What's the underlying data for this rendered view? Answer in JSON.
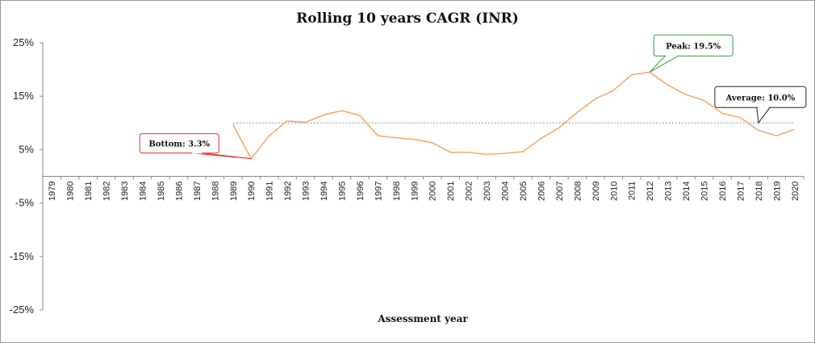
{
  "chart_data": {
    "type": "line",
    "title": "Rolling 10 years CAGR (INR)",
    "xlabel": "Assessment year",
    "ylabel": "",
    "ylim": [
      -25,
      25
    ],
    "yticks": [
      "25%",
      "15%",
      "5%",
      "-5%",
      "-15%",
      "-25%"
    ],
    "ytick_values": [
      25,
      15,
      5,
      -5,
      -15,
      -25
    ],
    "x": [
      "1979",
      "1980",
      "1981",
      "1982",
      "1983",
      "1984",
      "1985",
      "1986",
      "1987",
      "1988",
      "1989",
      "1990",
      "1991",
      "1992",
      "1993",
      "1994",
      "1995",
      "1996",
      "1997",
      "1998",
      "1999",
      "2000",
      "2001",
      "2002",
      "2003",
      "2004",
      "2005",
      "2006",
      "2007",
      "2008",
      "2009",
      "2010",
      "2011",
      "2012",
      "2013",
      "2014",
      "2015",
      "2016",
      "2017",
      "2018",
      "2019",
      "2020"
    ],
    "series": [
      {
        "color": "#f4a460",
        "values": [
          null,
          null,
          null,
          null,
          null,
          null,
          null,
          null,
          null,
          null,
          9.7,
          3.3,
          7.6,
          10.4,
          10.1,
          11.5,
          12.3,
          11.4,
          7.6,
          7.2,
          6.9,
          6.3,
          4.5,
          4.5,
          4.1,
          4.3,
          4.6,
          7.1,
          9.1,
          12.0,
          14.5,
          16.1,
          19.0,
          19.5,
          17.1,
          15.3,
          14.2,
          11.8,
          11.0,
          8.6,
          7.6,
          8.8
        ]
      },
      {
        "name": "Average",
        "style": "dotted",
        "color": "#8c8c8c",
        "value": 10.0,
        "x_range": [
          "1989",
          "2020"
        ]
      }
    ],
    "annotations": [
      {
        "label": "Bottom: 3.3%",
        "x": "1990",
        "y": 3.3,
        "border_color": "#e03131"
      },
      {
        "label": "Peak: 19.5%",
        "x": "2012",
        "y": 19.5,
        "border_color": "#2f9e44"
      },
      {
        "label": "Average: 10.0%",
        "x": "2018",
        "y": 10.0,
        "border_color": "#222222"
      }
    ],
    "grid": false,
    "legend": "none"
  }
}
